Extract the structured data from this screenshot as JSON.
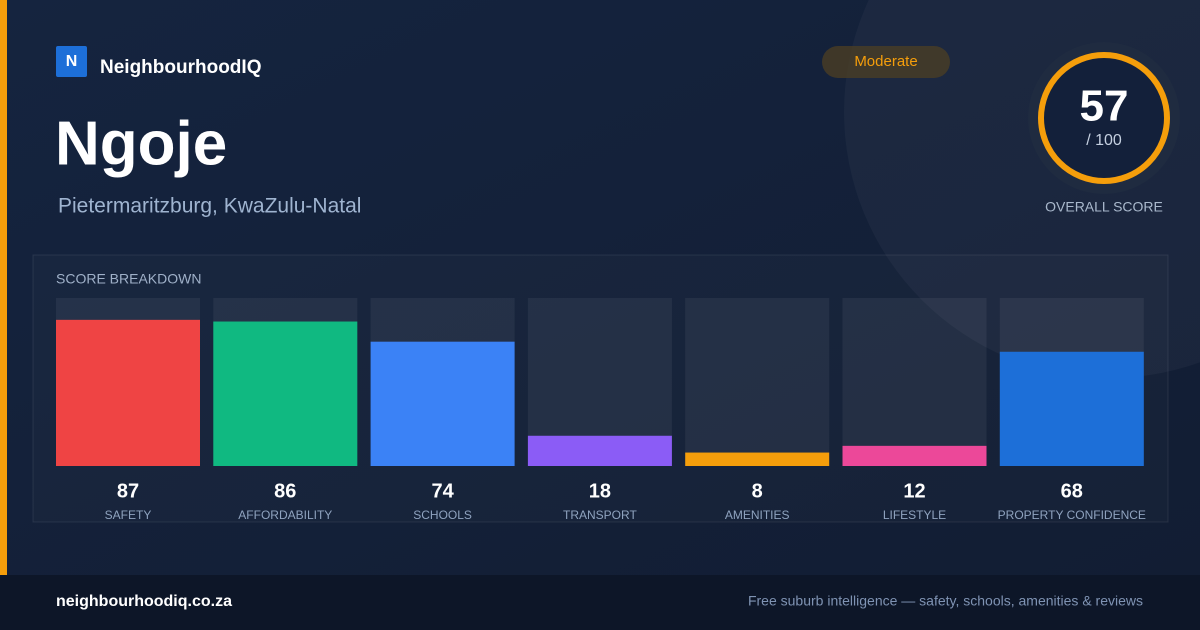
{
  "brand": "NeighbourhoodIQ",
  "brand_initial": "N",
  "title": "Ngoje",
  "subtitle": "Pietermaritzburg, KwaZulu-Natal",
  "badge": "Moderate",
  "overall": {
    "score": 57,
    "max_label": "/ 100",
    "label": "OVERALL SCORE"
  },
  "chart_data": {
    "type": "bar",
    "title": "SCORE BREAKDOWN",
    "categories": [
      "SAFETY",
      "AFFORDABILITY",
      "SCHOOLS",
      "TRANSPORT",
      "AMENITIES",
      "LIFESTYLE",
      "PROPERTY CONFIDENCE"
    ],
    "values": [
      87,
      86,
      74,
      18,
      8,
      12,
      68
    ],
    "colors": [
      "#ef4444",
      "#10b981",
      "#3b82f6",
      "#8b5cf6",
      "#f59e0b",
      "#ec4899",
      "#1d6fd8"
    ],
    "ylim": [
      0,
      100
    ]
  },
  "footer": {
    "site": "neighbourhoodiq.co.za",
    "tagline": "Free suburb intelligence — safety, schools, amenities & reviews"
  }
}
